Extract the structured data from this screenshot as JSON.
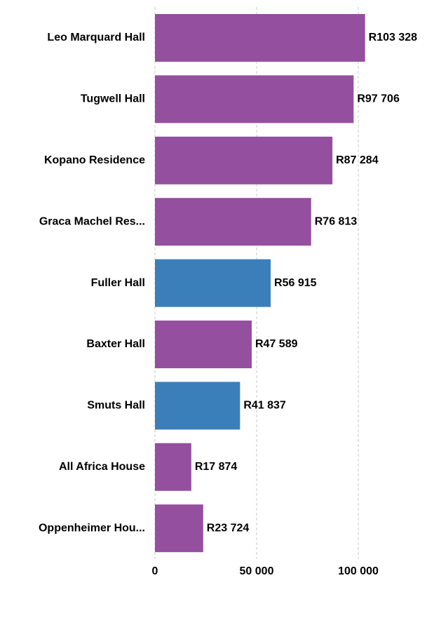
{
  "chart_data": {
    "type": "hbar",
    "categories": [
      "Leo Marquard Hall",
      "Tugwell Hall",
      "Kopano Residence",
      "Graca Machel Res...",
      "Fuller Hall",
      "Baxter Hall",
      "Smuts Hall",
      "All Africa House",
      "Oppenheimer Hou..."
    ],
    "values": [
      103328,
      97706,
      87284,
      76813,
      56915,
      47589,
      41837,
      17874,
      23724
    ],
    "value_labels": [
      "R103 328",
      "R97 706",
      "R87 284",
      "R76 813",
      "R56 915",
      "R47 589",
      "R41 837",
      "R17 874",
      "R23 724"
    ],
    "colors": [
      "#954f9f",
      "#954f9f",
      "#954f9f",
      "#954f9f",
      "#3a7fba",
      "#954f9f",
      "#3a7fba",
      "#954f9f",
      "#954f9f"
    ],
    "xlim": [
      0,
      110000
    ],
    "xticks": [
      0,
      {
        "value": 50000,
        "label": "50 000"
      },
      {
        "value": 100000,
        "label": "100 000"
      }
    ],
    "grid": true
  }
}
